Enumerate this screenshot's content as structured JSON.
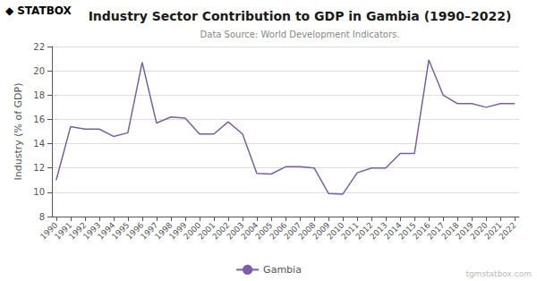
{
  "chart_data": {
    "type": "line",
    "title": "Industry Sector Contribution to GDP in Gambia (1990–2022)",
    "subtitle": "Data Source: World Development Indicators.",
    "ylabel": "Industry (% of GDP)",
    "x": [
      1990,
      1991,
      1992,
      1993,
      1994,
      1995,
      1996,
      1997,
      1998,
      1999,
      2000,
      2001,
      2002,
      2003,
      2004,
      2005,
      2006,
      2007,
      2008,
      2009,
      2010,
      2011,
      2012,
      2013,
      2014,
      2015,
      2016,
      2017,
      2018,
      2019,
      2020,
      2021,
      2022
    ],
    "series": [
      {
        "name": "Gambia",
        "color": "#7B5EA7",
        "values": [
          11.0,
          15.4,
          15.2,
          15.2,
          14.6,
          14.9,
          20.7,
          15.7,
          16.2,
          16.1,
          14.8,
          14.8,
          15.8,
          14.8,
          11.55,
          11.5,
          12.1,
          12.1,
          12.0,
          9.9,
          9.85,
          11.6,
          12.0,
          12.0,
          13.2,
          13.2,
          20.9,
          18.0,
          17.3,
          17.3,
          17.0,
          17.3,
          17.3
        ]
      }
    ],
    "xlim": [
      1989.7,
      2022.3
    ],
    "xticks": [
      1990,
      1991,
      1992,
      1993,
      1994,
      1995,
      1996,
      1997,
      1998,
      1999,
      2000,
      2001,
      2002,
      2003,
      2004,
      2005,
      2006,
      2007,
      2008,
      2009,
      2010,
      2011,
      2012,
      2013,
      2014,
      2015,
      2016,
      2017,
      2018,
      2019,
      2020,
      2021,
      2022
    ],
    "ylim": [
      8,
      22
    ],
    "yticks": [
      8,
      10,
      12,
      14,
      16,
      18,
      20,
      22
    ],
    "grid": true,
    "legend": "lower center",
    "annotations": [
      {
        "text": "◆",
        "color": "#222222"
      },
      {
        "text": "STAT",
        "color": "#222222"
      },
      {
        "text": "BOX",
        "color": "#7B5EA7"
      },
      {
        "text": "tgmstatbox.com",
        "color": "#bbbbbb"
      }
    ]
  }
}
